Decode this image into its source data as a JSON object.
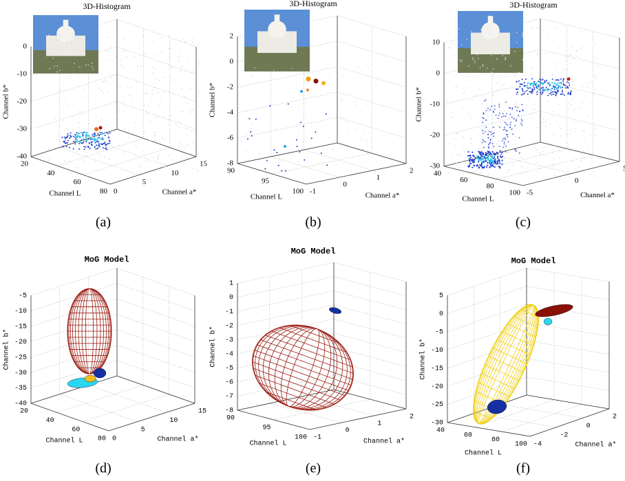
{
  "panels": [
    {
      "caption": "(a)",
      "title": "3D-Histogram",
      "x_label": "Channel L",
      "y_label": "Channel a*",
      "z_label": "Channel b*",
      "x_ticks": [
        20,
        40,
        60,
        80
      ],
      "y_ticks": [
        0,
        5,
        10,
        15
      ],
      "z_ticks": [
        0,
        -10,
        -20,
        -30,
        -40
      ]
    },
    {
      "caption": "(b)",
      "title": "3D-Histogram",
      "x_label": "Channel L",
      "y_label": "Channel a*",
      "z_label": "Channel b*",
      "x_ticks": [
        90,
        95,
        100
      ],
      "y_ticks": [
        -1,
        0,
        1,
        2
      ],
      "z_ticks": [
        2,
        0,
        -2,
        -4,
        -6,
        -8
      ]
    },
    {
      "caption": "(c)",
      "title": "3D-Histogram",
      "x_label": "Channel L",
      "y_label": "Channel a*",
      "z_label": "Channel b*",
      "x_ticks": [
        40,
        60,
        80,
        100
      ],
      "y_ticks": [
        -5,
        0,
        5
      ],
      "z_ticks": [
        10,
        0,
        -10,
        -20,
        -30
      ]
    },
    {
      "caption": "(d)",
      "title": "MoG Model",
      "x_label": "Channel L",
      "y_label": "Channel a*",
      "z_label": "Channel b*",
      "x_ticks": [
        20,
        40,
        60,
        80
      ],
      "y_ticks": [
        0,
        5,
        10,
        15
      ],
      "z_ticks": [
        -5,
        -10,
        -15,
        -20,
        -25,
        -30,
        -35,
        -40
      ]
    },
    {
      "caption": "(e)",
      "title": "MoG Model",
      "x_label": "Channel L",
      "y_label": "Channel a*",
      "z_label": "Channel b*",
      "x_ticks": [
        90,
        95,
        100
      ],
      "y_ticks": [
        -1,
        0,
        1,
        2
      ],
      "z_ticks": [
        1,
        0,
        -1,
        -2,
        -3,
        -4,
        -5,
        -6,
        -7,
        -8
      ]
    },
    {
      "caption": "(f)",
      "title": "MoG Model",
      "x_label": "Channel L",
      "y_label": "Channel a*",
      "z_label": "Channel b*",
      "x_ticks": [
        40,
        60,
        80,
        100
      ],
      "y_ticks": [
        -4,
        -2,
        0,
        2
      ],
      "z_ticks": [
        5,
        0,
        -5,
        -10,
        -15,
        -20,
        -25,
        -30
      ]
    }
  ]
}
